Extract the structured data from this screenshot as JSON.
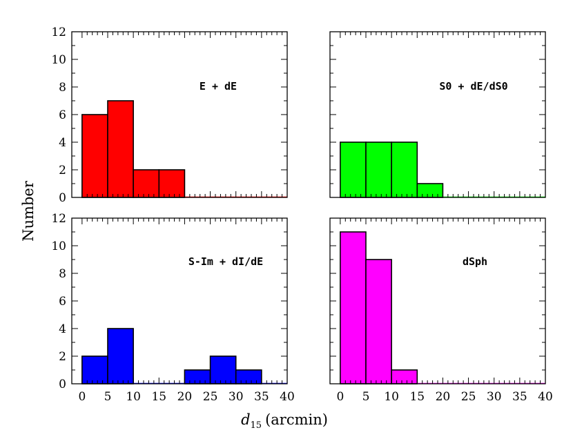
{
  "chart_data": {
    "type": "bar",
    "ylabel": "Number",
    "xlabel": {
      "symbol": "d",
      "subscript": "15",
      "unit": "(arcmin)"
    },
    "bin_edges": [
      0,
      5,
      10,
      15,
      20,
      25,
      30,
      35,
      40
    ],
    "xlim": [
      -2,
      40
    ],
    "ylim": [
      0,
      12
    ],
    "xticks": [
      "0",
      "5",
      "10",
      "15",
      "20",
      "25",
      "30",
      "35",
      "40"
    ],
    "yticks": [
      "0",
      "2",
      "4",
      "6",
      "8",
      "10",
      "12"
    ],
    "panels": [
      {
        "label": "E + dE",
        "color": "#ff0000",
        "values": [
          6,
          7,
          2,
          2,
          0,
          0,
          0,
          0
        ]
      },
      {
        "label": "S0 + dE/dS0",
        "color": "#00ff00",
        "values": [
          4,
          4,
          4,
          1,
          0,
          0,
          0,
          0
        ]
      },
      {
        "label": "S-Im + dI/dE",
        "color": "#0000ff",
        "values": [
          2,
          4,
          0,
          0,
          1,
          2,
          1,
          0
        ]
      },
      {
        "label": "dSph",
        "color": "#ff00ff",
        "values": [
          11,
          9,
          1,
          0,
          0,
          0,
          0,
          0
        ]
      }
    ]
  }
}
